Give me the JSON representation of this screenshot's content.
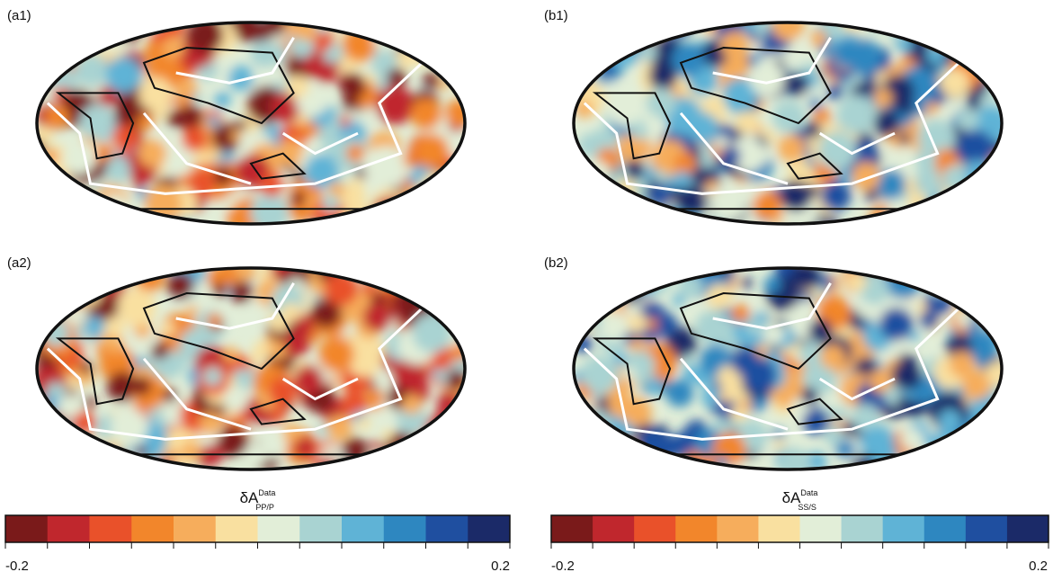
{
  "panels": [
    {
      "label": "(a1)"
    },
    {
      "label": "(b1)"
    },
    {
      "label": "(a2)"
    },
    {
      "label": "(b2)"
    }
  ],
  "colorbars": [
    {
      "symbol": "δA",
      "superscript": "Data",
      "subscript": "PP/P",
      "lim": [
        -0.2,
        0.2
      ],
      "ticks": [
        -0.2,
        0.2
      ]
    },
    {
      "symbol": "δA",
      "superscript": "Data",
      "subscript": "SS/S",
      "lim": [
        -0.2,
        0.2
      ],
      "ticks": [
        -0.2,
        0.2
      ]
    }
  ],
  "colors": [
    "#7a1a1a",
    "#c0272d",
    "#e9512a",
    "#f2862b",
    "#f6ad5c",
    "#f9e0a0",
    "#e2eed8",
    "#a9d3d2",
    "#5fb3d6",
    "#2e87c0",
    "#1f4fa0",
    "#1b2a68"
  ]
}
